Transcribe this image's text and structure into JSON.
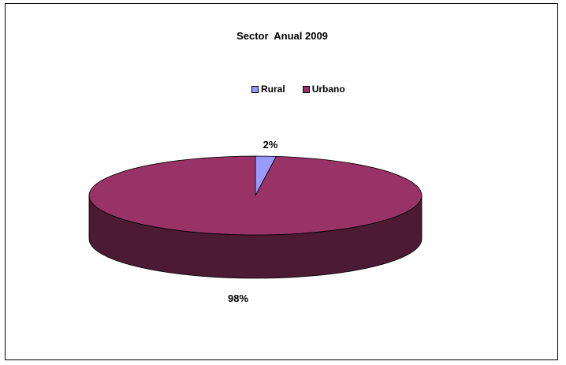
{
  "chart_data": {
    "type": "pie",
    "title": "Sector  Anual 2009",
    "categories": [
      "Rural",
      "Urbano"
    ],
    "values": [
      2,
      98
    ],
    "data_labels": [
      "2%",
      "98%"
    ],
    "colors": {
      "Rural": "#9999ff",
      "Urbano": "#993366",
      "Urbano_side": "#4d1a33",
      "Rural_side": "#4d4d80"
    },
    "style": "3d",
    "legend_position": "top"
  },
  "legend": {
    "items": [
      {
        "label": "Rural",
        "color": "#9999ff"
      },
      {
        "label": "Urbano",
        "color": "#993366"
      }
    ]
  }
}
